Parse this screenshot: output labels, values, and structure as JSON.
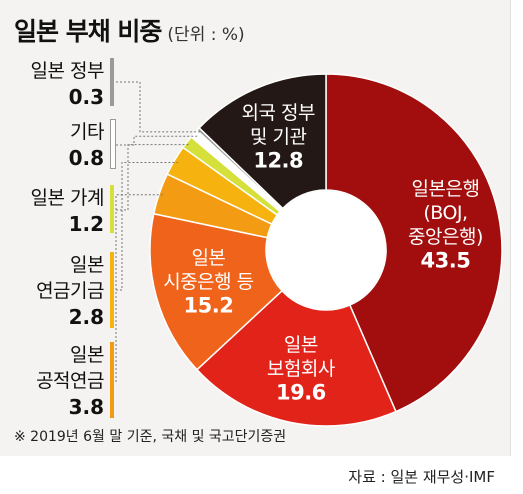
{
  "title": "일본 부채 비중",
  "unit": "(단위 : %)",
  "legend": [
    {
      "label_lines": [
        "일본 정부"
      ],
      "value": "0.3",
      "color": "#9a9a9a"
    },
    {
      "label_lines": [
        "기타"
      ],
      "value": "0.8",
      "color": "#ffffff"
    },
    {
      "label_lines": [
        "일본 가계"
      ],
      "value": "1.2",
      "color": "#d6e03a"
    },
    {
      "label_lines": [
        "일본",
        "연금기금"
      ],
      "value": "2.8",
      "color": "#f6b20e"
    },
    {
      "label_lines": [
        "일본",
        "공적연금"
      ],
      "value": "3.8",
      "color": "#f39b12"
    }
  ],
  "footnote": "※ 2019년 6월 말 기준, 국채 및 국고단기증권",
  "source": "자료 : 일본 재무성·IMF",
  "chart_data": {
    "type": "pie",
    "donut": true,
    "start": "12 o'clock, clockwise",
    "slices": [
      {
        "label_lines": [
          "일본은행",
          "(BOJ,",
          "중앙은행)"
        ],
        "value": 43.5,
        "color": "#a20d0d"
      },
      {
        "label_lines": [
          "일본",
          "보험회사"
        ],
        "value": 19.6,
        "color": "#e2231a"
      },
      {
        "label_lines": [
          "일본",
          "시중은행 등"
        ],
        "value": 15.2,
        "color": "#f0631a"
      },
      {
        "label_lines": [],
        "value": 3.8,
        "color": "#f39b12"
      },
      {
        "label_lines": [],
        "value": 2.8,
        "color": "#f6b20e"
      },
      {
        "label_lines": [],
        "value": 1.2,
        "color": "#d6e03a"
      },
      {
        "label_lines": [],
        "value": 0.8,
        "color": "#ffffff"
      },
      {
        "label_lines": [],
        "value": 0.3,
        "color": "#9a9a9a"
      },
      {
        "label_lines": [
          "외국 정부",
          "및 기관"
        ],
        "value": 12.8,
        "color": "#231815"
      }
    ]
  }
}
